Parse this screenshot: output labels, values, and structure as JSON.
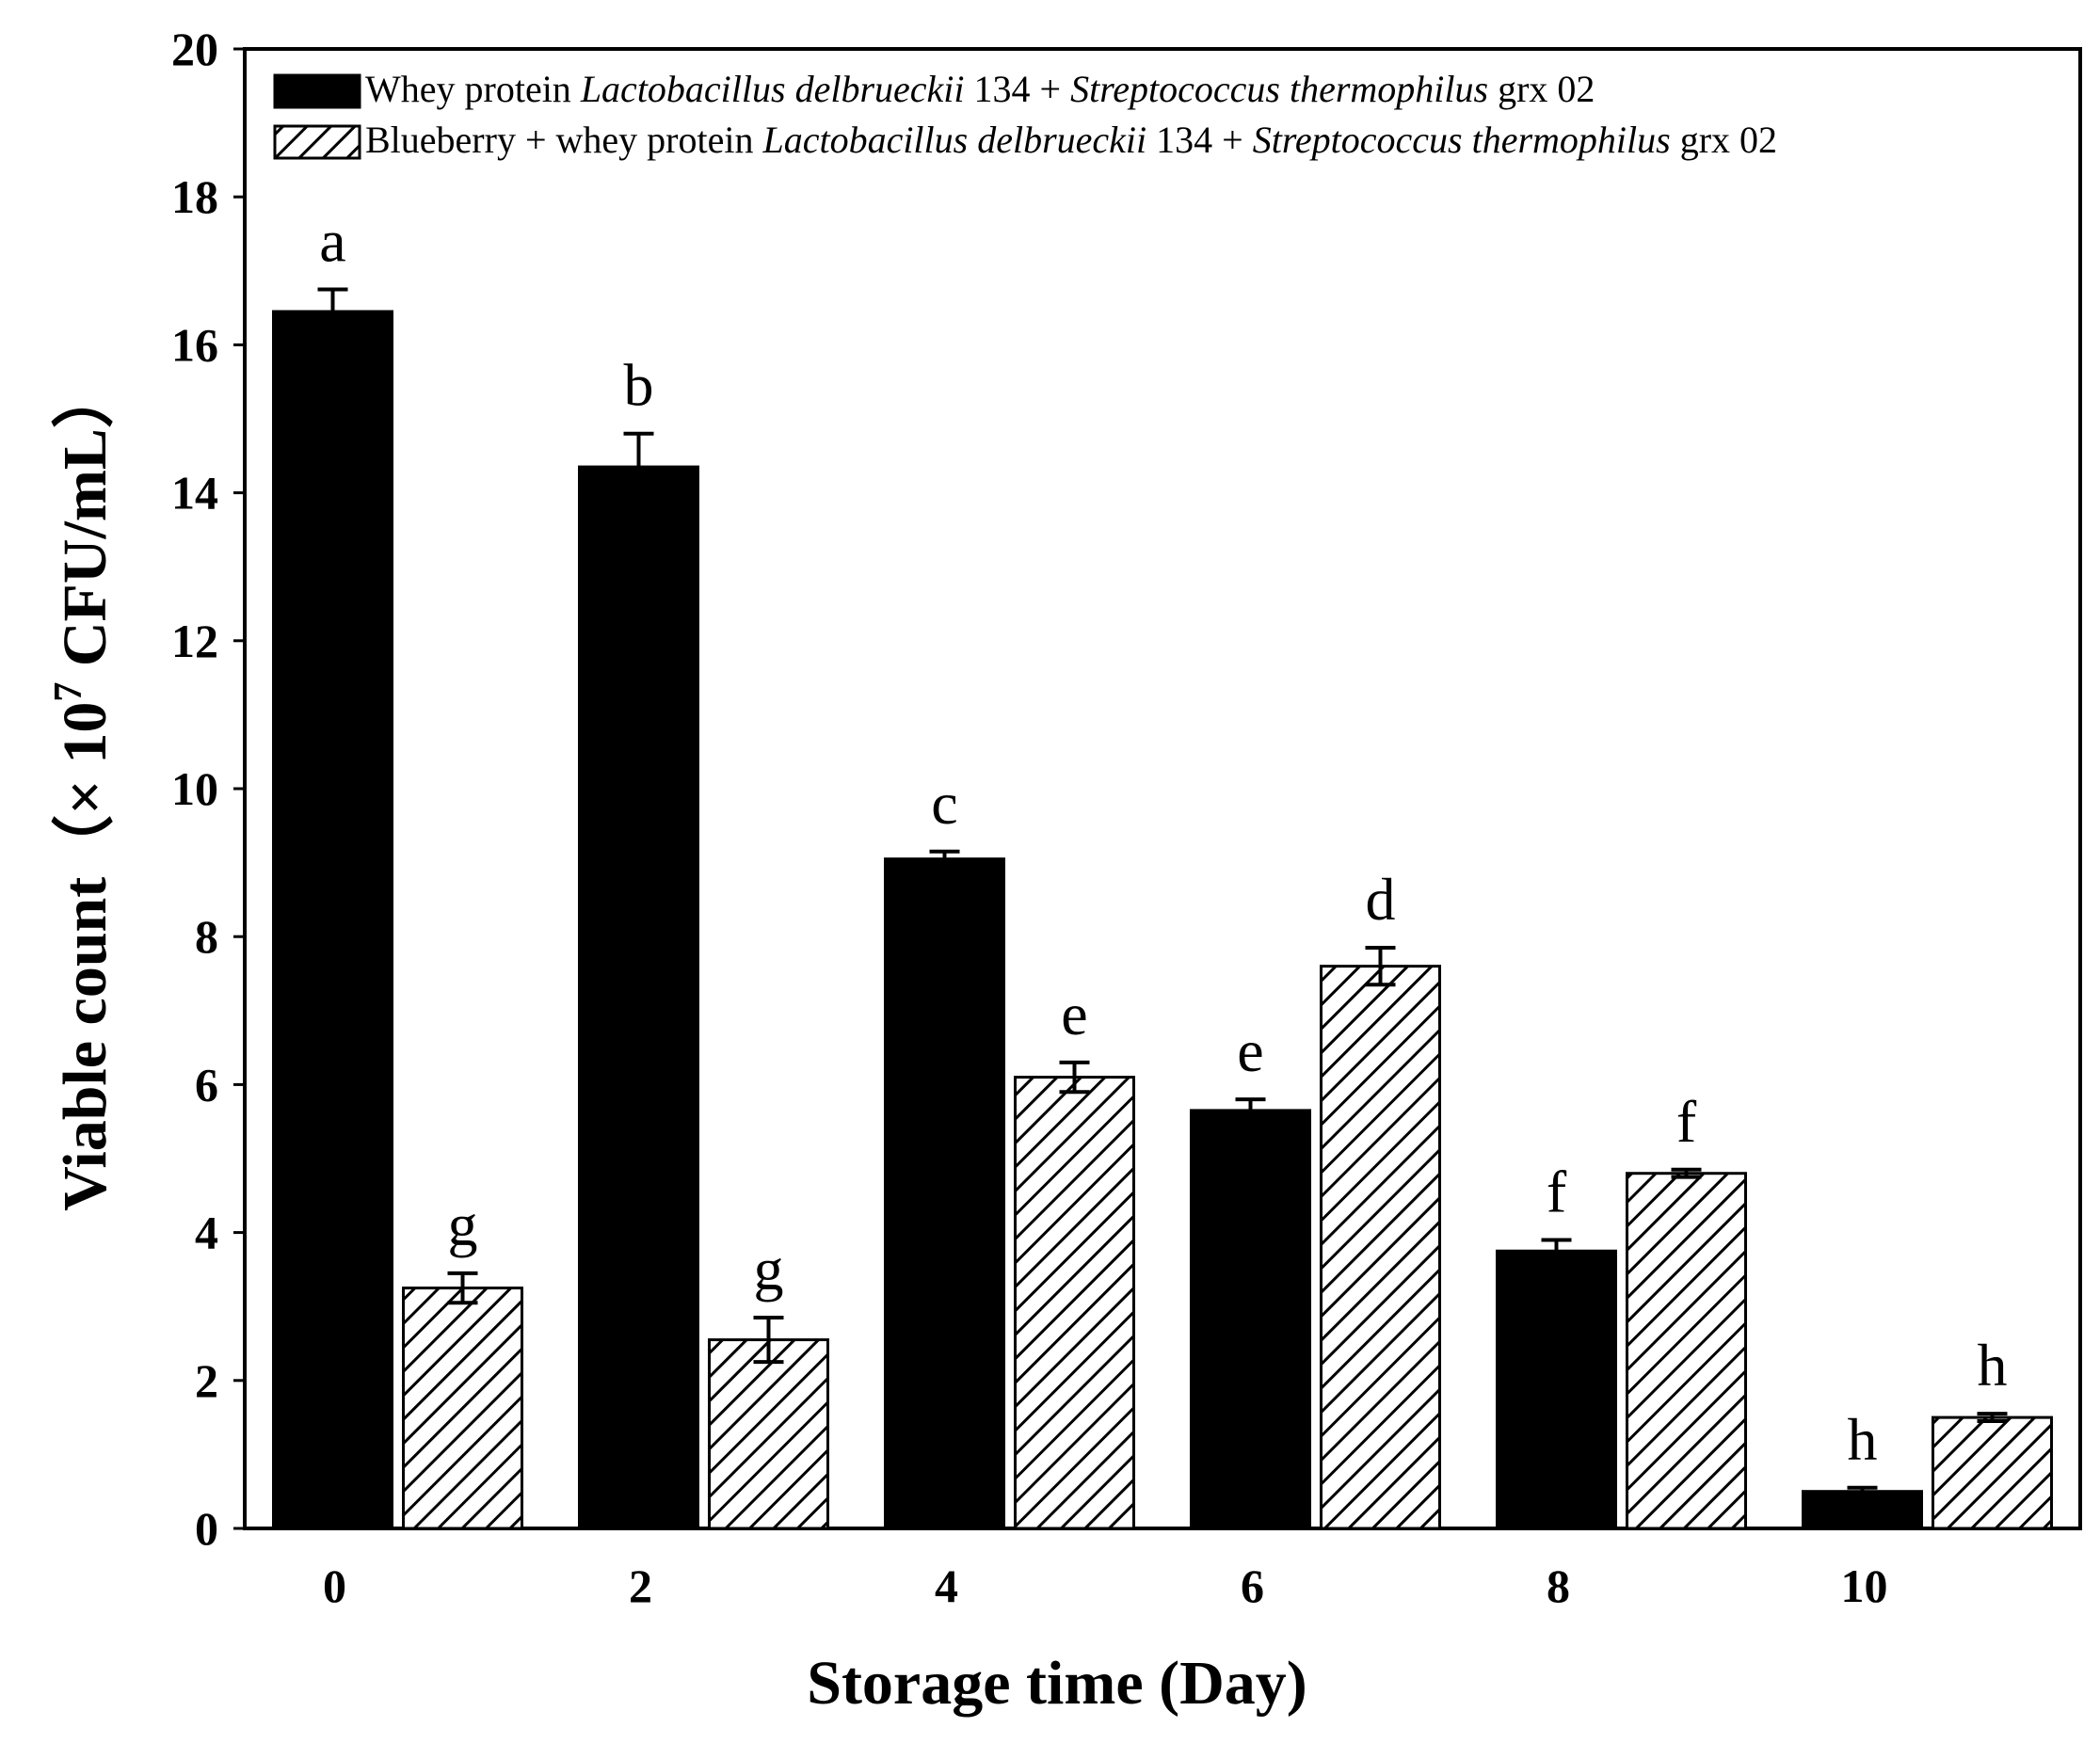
{
  "chart_data": {
    "type": "bar",
    "title": "",
    "xlabel": "Storage time (Day)",
    "ylabel": {
      "prefix": "Viable count（× 10",
      "exponent": "7",
      "suffix": " CFU/mL）"
    },
    "categories": [
      "0",
      "2",
      "4",
      "6",
      "8",
      "10"
    ],
    "ylim": [
      0,
      20
    ],
    "yticks": [
      "0",
      "2",
      "4",
      "6",
      "8",
      "10",
      "12",
      "14",
      "16",
      "18",
      "20"
    ],
    "grid": false,
    "legend_position": "top-left",
    "series": [
      {
        "name": "Whey protein Lactobacillus delbrueckii 134 + Streptococcus thermophilus grx 02",
        "legend_parts": [
          {
            "text": "Whey protein ",
            "italic": false
          },
          {
            "text": "Lactobacillus delbrueckii",
            "italic": true
          },
          {
            "text": " 134 + ",
            "italic": false
          },
          {
            "text": "Streptococcus thermophilus",
            "italic": true
          },
          {
            "text": " grx 02",
            "italic": false
          }
        ],
        "fill": "solid",
        "color": "#000000",
        "values": [
          16.45,
          14.35,
          9.05,
          5.65,
          3.75,
          0.5
        ],
        "errors": [
          0.3,
          0.45,
          0.1,
          0.15,
          0.15,
          0.05
        ],
        "labels": [
          "a",
          "b",
          "c",
          "e",
          "f",
          "h"
        ]
      },
      {
        "name": "Blueberry + whey protein Lactobacillus delbrueckii 134 + Streptococcus thermophilus grx 02",
        "legend_parts": [
          {
            "text": "Blueberry + whey protein ",
            "italic": false
          },
          {
            "text": "Lactobacillus delbrueckii",
            "italic": true
          },
          {
            "text": " 134 + ",
            "italic": false
          },
          {
            "text": "Streptococcus thermophilus",
            "italic": true
          },
          {
            "text": " grx 02",
            "italic": false
          }
        ],
        "fill": "hatched",
        "color": "#000000",
        "values": [
          3.25,
          2.55,
          6.1,
          7.6,
          4.8,
          1.5
        ],
        "errors": [
          0.2,
          0.3,
          0.2,
          0.25,
          0.05,
          0.05
        ],
        "labels": [
          "g",
          "g",
          "e",
          "d",
          "f",
          "h"
        ]
      }
    ]
  }
}
